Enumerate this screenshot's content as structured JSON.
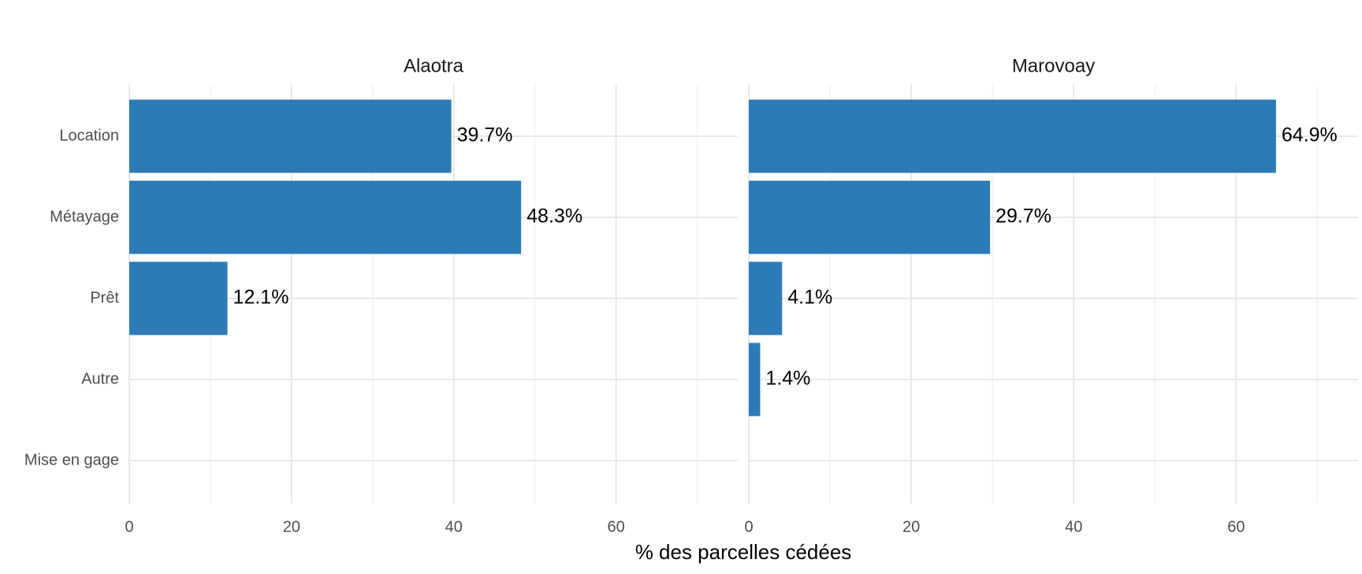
{
  "chart_data": {
    "type": "bar",
    "orientation": "horizontal",
    "xlabel": "% des parcelles cédées",
    "categories": [
      "Location",
      "Métayage",
      "Prêt",
      "Autre",
      "Mise en gage"
    ],
    "color": "#2c7bb6",
    "xlim": [
      0,
      75
    ],
    "xticks": [
      0,
      20,
      40,
      60
    ],
    "minor_xticks": [
      10,
      30,
      50,
      70
    ],
    "grid": true,
    "panels": [
      {
        "title": "Alaotra",
        "values": [
          39.7,
          48.3,
          12.1,
          null,
          null
        ],
        "value_labels": [
          "39.7%",
          "48.3%",
          "12.1%",
          null,
          null
        ]
      },
      {
        "title": "Marovoay",
        "values": [
          64.9,
          29.7,
          4.1,
          1.4,
          null
        ],
        "value_labels": [
          "64.9%",
          "29.7%",
          "4.1%",
          "1.4%",
          null
        ]
      }
    ]
  }
}
